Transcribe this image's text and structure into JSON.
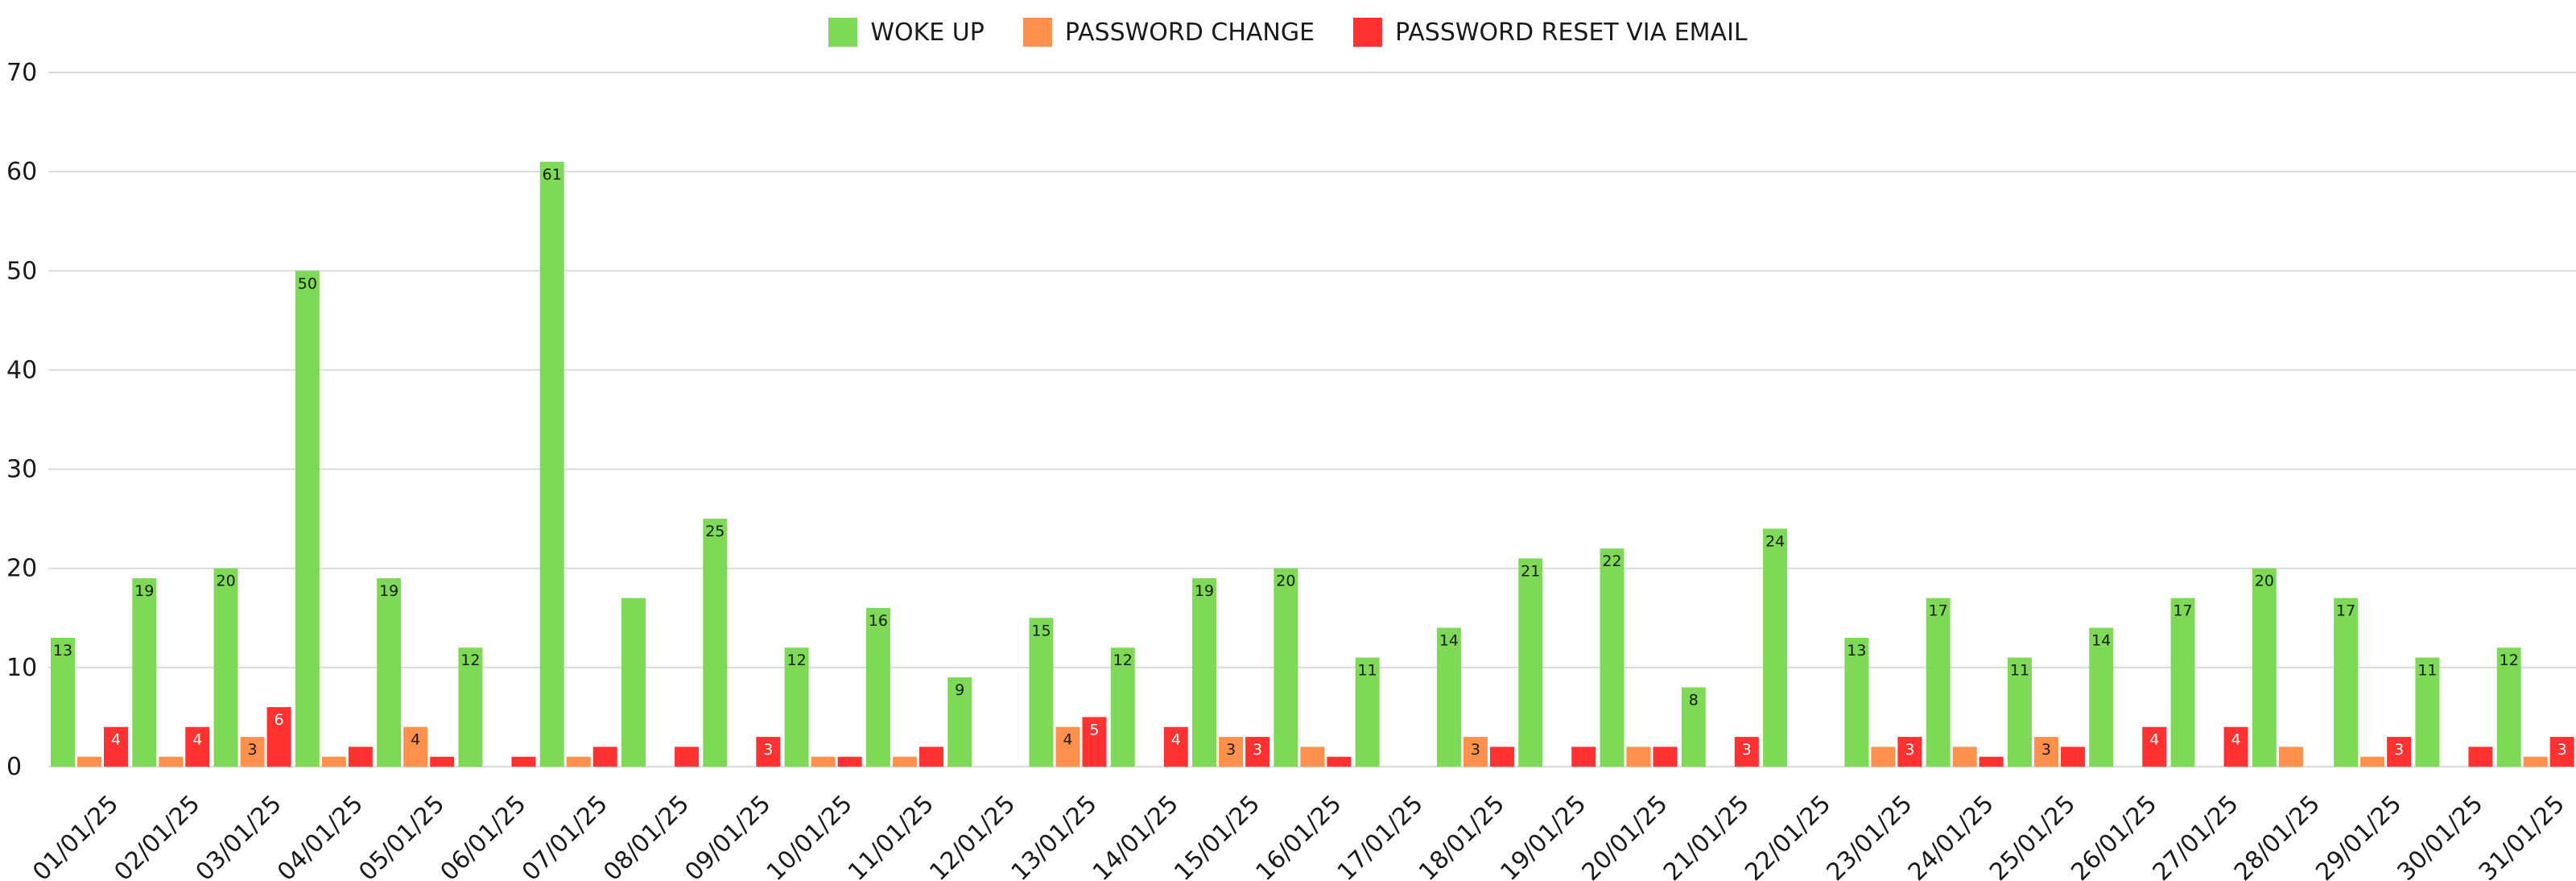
{
  "chart_data": {
    "type": "bar",
    "title": "",
    "xlabel": "",
    "ylabel": "",
    "ylim": [
      0,
      70
    ],
    "yticks": [
      0,
      10,
      20,
      30,
      40,
      50,
      60,
      70
    ],
    "grid": true,
    "legend_position": "top-center",
    "categories": [
      "01/01/25",
      "02/01/25",
      "03/01/25",
      "04/01/25",
      "05/01/25",
      "06/01/25",
      "07/01/25",
      "08/01/25",
      "09/01/25",
      "10/01/25",
      "11/01/25",
      "12/01/25",
      "13/01/25",
      "14/01/25",
      "15/01/25",
      "16/01/25",
      "17/01/25",
      "18/01/25",
      "19/01/25",
      "20/01/25",
      "21/01/25",
      "22/01/25",
      "23/01/25",
      "24/01/25",
      "25/01/25",
      "26/01/25",
      "27/01/25",
      "28/01/25",
      "29/01/25",
      "30/01/25",
      "31/01/25"
    ],
    "series": [
      {
        "name": "WOKE UP",
        "color": "#7ed957",
        "values": [
          13,
          19,
          20,
          50,
          19,
          12,
          61,
          17,
          25,
          12,
          16,
          9,
          15,
          12,
          19,
          20,
          11,
          14,
          21,
          22,
          8,
          24,
          13,
          17,
          11,
          14,
          17,
          20,
          17,
          11,
          12
        ],
        "labels": [
          13,
          19,
          20,
          50,
          19,
          12,
          61,
          null,
          25,
          12,
          16,
          9,
          15,
          12,
          19,
          20,
          11,
          14,
          21,
          22,
          8,
          24,
          13,
          17,
          11,
          14,
          17,
          20,
          17,
          11,
          12
        ]
      },
      {
        "name": "PASSWORD CHANGE",
        "color": "#ff914d",
        "values": [
          1,
          1,
          3,
          1,
          4,
          0,
          1,
          0,
          0,
          1,
          1,
          0,
          4,
          0,
          3,
          2,
          0,
          3,
          0,
          2,
          0,
          0,
          2,
          2,
          3,
          0,
          0,
          2,
          1,
          0,
          1
        ],
        "labels": [
          null,
          null,
          3,
          null,
          4,
          null,
          null,
          null,
          null,
          null,
          null,
          null,
          4,
          null,
          3,
          null,
          null,
          3,
          null,
          null,
          null,
          null,
          null,
          null,
          3,
          null,
          null,
          null,
          null,
          null,
          null
        ]
      },
      {
        "name": "PASSWORD RESET VIA EMAIL",
        "color": "#ff3131",
        "values": [
          4,
          4,
          6,
          2,
          1,
          1,
          2,
          2,
          3,
          1,
          2,
          0,
          5,
          4,
          3,
          1,
          0,
          2,
          2,
          2,
          3,
          0,
          3,
          1,
          2,
          4,
          4,
          0,
          3,
          2,
          3
        ],
        "labels": [
          4,
          4,
          6,
          null,
          null,
          null,
          null,
          null,
          3,
          null,
          null,
          null,
          5,
          4,
          3,
          null,
          null,
          null,
          null,
          null,
          3,
          null,
          3,
          null,
          null,
          4,
          4,
          null,
          3,
          null,
          3
        ]
      }
    ]
  }
}
